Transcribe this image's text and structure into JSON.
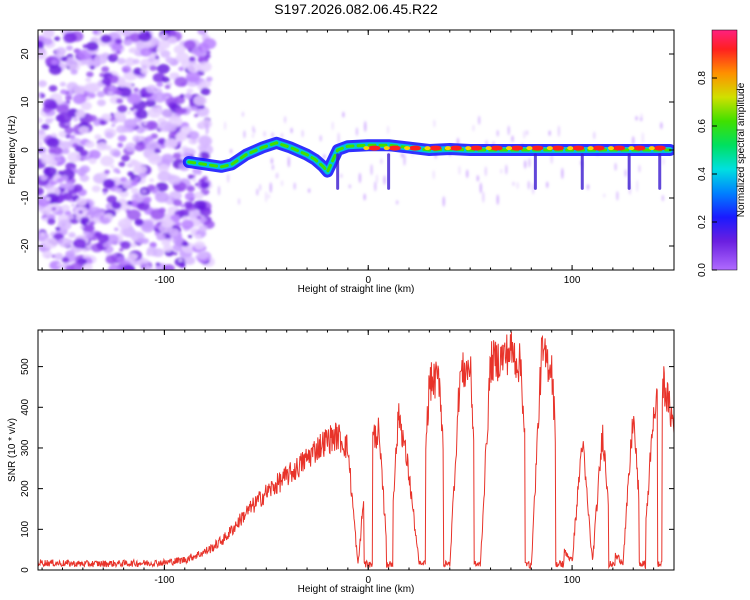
{
  "title": "S197.2026.082.06.45.R22",
  "chart_data": [
    {
      "type": "heatmap",
      "xlabel": "Height of straight line (km)",
      "ylabel": "Frequency (Hz)",
      "xlim": [
        -162,
        150
      ],
      "ylim": [
        -25,
        25
      ],
      "xticks": [
        -100,
        0,
        100
      ],
      "yticks": [
        -20,
        -10,
        0,
        10,
        20
      ],
      "colorbar": {
        "label": "Normalized spectral amplitude",
        "range": [
          0,
          1
        ],
        "ticks": [
          0.0,
          0.2,
          0.4,
          0.6,
          0.8
        ]
      },
      "ridge": {
        "x": [
          -88,
          -80,
          -72,
          -67,
          -60,
          -52,
          -45,
          -38,
          -30,
          -26,
          -22,
          -20,
          -15,
          -10,
          0,
          10,
          20,
          30,
          40,
          50,
          60,
          70,
          80,
          90,
          100,
          110,
          120,
          130,
          140,
          148
        ],
        "freq": [
          -2.5,
          -3,
          -3.5,
          -3,
          -1,
          0.5,
          1.5,
          0.5,
          -1,
          -2,
          -3.5,
          -4.5,
          0,
          0.8,
          1,
          1,
          0.5,
          0,
          0.2,
          0,
          0,
          0,
          0,
          0,
          0,
          0,
          0,
          0,
          0,
          0
        ]
      },
      "noise_region_x": [
        -162,
        -85
      ]
    },
    {
      "type": "line",
      "xlabel": "Height of straight line (km)",
      "ylabel": "SNR (10 * v/v)",
      "xlim": [
        -162,
        150
      ],
      "ylim": [
        0,
        590
      ],
      "xticks": [
        -100,
        0,
        100
      ],
      "yticks": [
        0,
        100,
        200,
        300,
        400,
        500
      ],
      "series_color": "#e8332a",
      "x": [
        -162,
        -140,
        -120,
        -100,
        -90,
        -80,
        -75,
        -70,
        -65,
        -60,
        -55,
        -50,
        -45,
        -40,
        -35,
        -30,
        -25,
        -20,
        -15,
        -10,
        -5,
        0,
        5,
        10,
        15,
        20,
        25,
        30,
        35,
        40,
        45,
        50,
        55,
        60,
        65,
        70,
        75,
        80,
        85,
        90,
        95,
        100,
        105,
        110,
        115,
        120,
        125,
        130,
        135,
        140,
        145,
        150
      ],
      "y": [
        18,
        15,
        16,
        18,
        25,
        45,
        60,
        80,
        110,
        140,
        165,
        190,
        210,
        230,
        250,
        275,
        300,
        320,
        330,
        300,
        10,
        310,
        340,
        10,
        390,
        235,
        10,
        460,
        470,
        10,
        480,
        500,
        10,
        510,
        520,
        540,
        500,
        10,
        530,
        500,
        60,
        20,
        320,
        20,
        340,
        40,
        20,
        380,
        20,
        390,
        460,
        350
      ],
      "dropouts_to_zero": [
        [
          -2,
          2
        ],
        [
          9,
          12
        ],
        [
          25,
          28
        ],
        [
          37,
          40
        ],
        [
          52,
          55
        ],
        [
          77,
          80
        ],
        [
          92,
          96
        ],
        [
          118,
          121
        ],
        [
          133,
          136
        ],
        [
          142,
          144
        ]
      ]
    }
  ]
}
